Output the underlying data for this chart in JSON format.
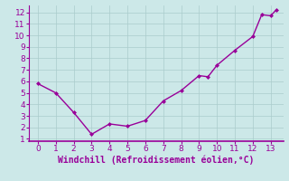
{
  "x": [
    0,
    1,
    2,
    3,
    4,
    5,
    6,
    7,
    8,
    9,
    9.5,
    10,
    11,
    12,
    12.5,
    13,
    13.3
  ],
  "y": [
    5.8,
    5.0,
    3.3,
    1.4,
    2.3,
    2.1,
    2.6,
    4.3,
    5.2,
    6.5,
    6.4,
    7.4,
    8.7,
    9.9,
    11.8,
    11.7,
    12.2
  ],
  "line_color": "#990099",
  "marker": "D",
  "marker_size": 2.0,
  "bg_color": "#cce8e8",
  "grid_color": "#aacccc",
  "xlabel": "Windchill (Refroidissement éolien,°C)",
  "xlabel_color": "#990099",
  "xlabel_fontsize": 7,
  "tick_color": "#990099",
  "tick_fontsize": 6.5,
  "xlim": [
    -0.5,
    13.7
  ],
  "ylim": [
    0.8,
    12.6
  ],
  "xticks": [
    0,
    1,
    2,
    3,
    4,
    5,
    6,
    7,
    8,
    9,
    10,
    11,
    12,
    13
  ],
  "yticks": [
    1,
    2,
    3,
    4,
    5,
    6,
    7,
    8,
    9,
    10,
    11,
    12
  ],
  "axis_line_color": "#990099",
  "linewidth": 1.0
}
